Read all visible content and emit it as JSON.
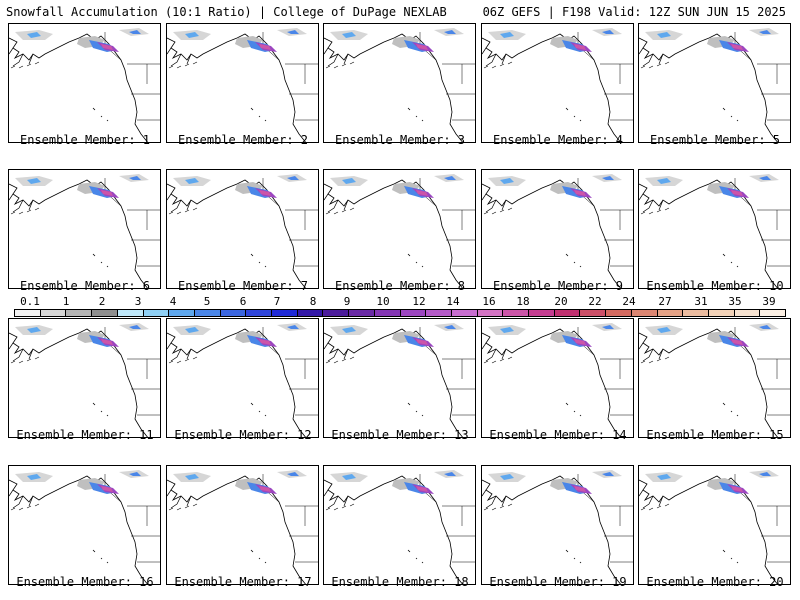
{
  "header": {
    "left": "Snowfall Accumulation (10:1 Ratio) | College of DuPage NEXLAB",
    "right": "06Z GEFS | F198 Valid: 12Z SUN JUN 15 2025"
  },
  "panels": [
    {
      "label": "Ensemble Member: 1"
    },
    {
      "label": "Ensemble Member: 2"
    },
    {
      "label": "Ensemble Member: 3"
    },
    {
      "label": "Ensemble Member: 4"
    },
    {
      "label": "Ensemble Member: 5"
    },
    {
      "label": "Ensemble Member: 6"
    },
    {
      "label": "Ensemble Member: 7"
    },
    {
      "label": "Ensemble Member: 8"
    },
    {
      "label": "Ensemble Member: 9"
    },
    {
      "label": "Ensemble Member: 10"
    },
    {
      "label": "Ensemble Member: 11"
    },
    {
      "label": "Ensemble Member: 12"
    },
    {
      "label": "Ensemble Member: 13"
    },
    {
      "label": "Ensemble Member: 14"
    },
    {
      "label": "Ensemble Member: 15"
    },
    {
      "label": "Ensemble Member: 16"
    },
    {
      "label": "Ensemble Member: 17"
    },
    {
      "label": "Ensemble Member: 18"
    },
    {
      "label": "Ensemble Member: 19"
    },
    {
      "label": "Ensemble Member: 20"
    }
  ],
  "colorbar": {
    "ticks": [
      "0.1",
      "1",
      "2",
      "3",
      "4",
      "5",
      "6",
      "7",
      "8",
      "9",
      "10",
      "12",
      "14",
      "16",
      "18",
      "20",
      "22",
      "24",
      "27",
      "31",
      "35",
      "39"
    ],
    "colors": [
      "#f2f2f2",
      "#d6d6d6",
      "#b4b4b4",
      "#8e8e8e",
      "#bfe8fa",
      "#8fd0f5",
      "#5fa8ee",
      "#4a86e8",
      "#3b66e0",
      "#2f46dc",
      "#1f2ad8",
      "#3318a8",
      "#4c1c9c",
      "#6a2aa6",
      "#8436b4",
      "#9c46c0",
      "#b45ac8",
      "#c86ed0",
      "#d474c4",
      "#cc55a8",
      "#c43c90",
      "#c03070",
      "#cc5068",
      "#d46a60",
      "#dc8672",
      "#e4a286",
      "#ecbca0",
      "#f2d2b8",
      "#f6e2d0",
      "#fcf0e4"
    ]
  }
}
